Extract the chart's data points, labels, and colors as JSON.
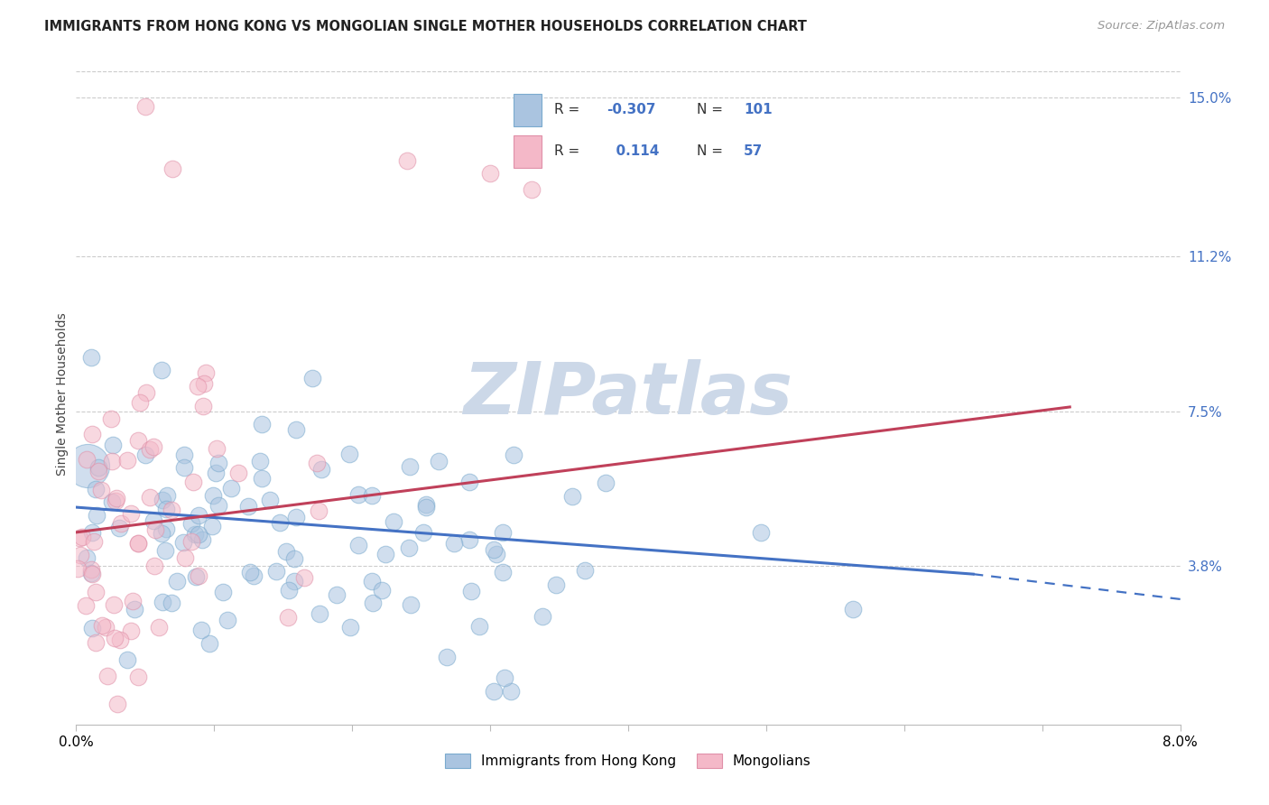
{
  "title": "IMMIGRANTS FROM HONG KONG VS MONGOLIAN SINGLE MOTHER HOUSEHOLDS CORRELATION CHART",
  "source": "Source: ZipAtlas.com",
  "ylabel": "Single Mother Households",
  "ytick_labels": [
    "15.0%",
    "11.2%",
    "7.5%",
    "3.8%"
  ],
  "ytick_values": [
    0.15,
    0.112,
    0.075,
    0.038
  ],
  "xmin": 0.0,
  "xmax": 0.08,
  "ymin": 0.0,
  "ymax": 0.158,
  "legend_label_blue": "Immigrants from Hong Kong",
  "legend_label_pink": "Mongolians",
  "color_blue_fill": "#aac4e0",
  "color_blue_edge": "#7aaace",
  "color_pink_fill": "#f4b8c8",
  "color_pink_edge": "#e090a8",
  "line_color_blue": "#4472c4",
  "line_color_pink": "#c0405a",
  "watermark": "ZIPatlas",
  "watermark_color": "#ccd8e8",
  "background_color": "#ffffff",
  "grid_color": "#cccccc",
  "right_tick_color": "#4472c4",
  "scatter_alpha": 0.55,
  "scatter_size": 180,
  "big_circle_size": 1200,
  "blue_line_y0": 0.052,
  "blue_line_y_at_x065": 0.036,
  "blue_line_y_at_x08": 0.028,
  "pink_line_y0": 0.046,
  "pink_line_y_at_x072": 0.076
}
